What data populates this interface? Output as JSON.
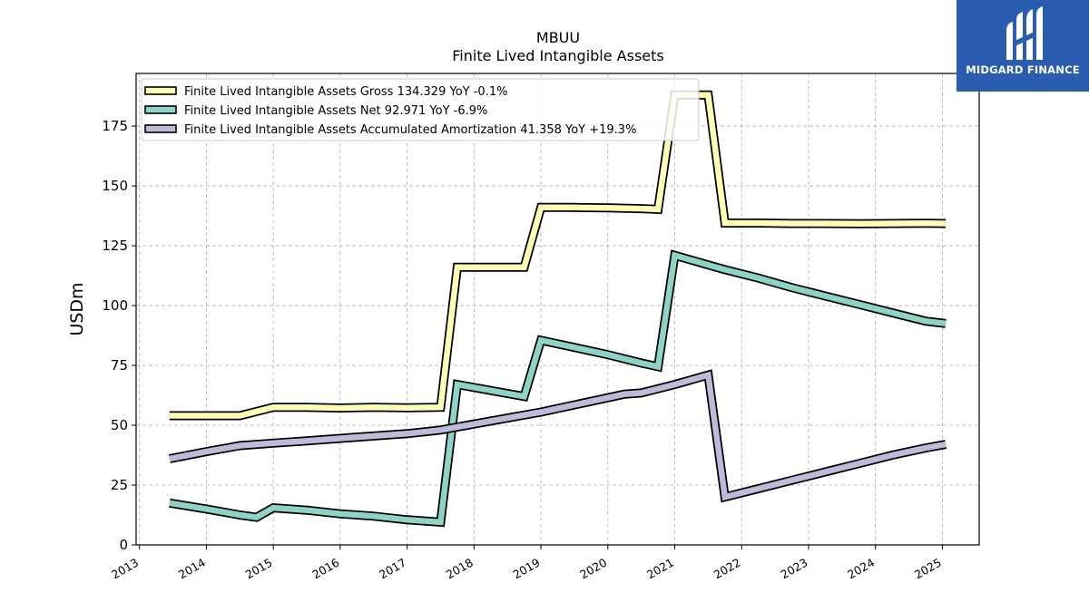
{
  "chart_data": {
    "type": "line",
    "title": "MBUU",
    "subtitle": "Finite Lived Intangible Assets",
    "ylabel": "USDm",
    "xlabel": "",
    "ylim": [
      0,
      197
    ],
    "xlim": [
      2012.95,
      2025.55
    ],
    "yticks": [
      0,
      25,
      50,
      75,
      100,
      125,
      150,
      175
    ],
    "xticks": [
      "2013",
      "2014",
      "2015",
      "2016",
      "2017",
      "2018",
      "2019",
      "2020",
      "2021",
      "2022",
      "2023",
      "2024",
      "2025"
    ],
    "grid": true,
    "legend_position": "top-left",
    "series": [
      {
        "name": "Finite Lived Intangible Assets Gross  134.329 YoY -0.1%",
        "color": "#ffffb3",
        "x": [
          2013.45,
          2014.5,
          2015.0,
          2015.5,
          2016.0,
          2016.5,
          2017.0,
          2017.5,
          2017.75,
          2018.5,
          2018.75,
          2019.0,
          2019.5,
          2020.0,
          2020.5,
          2020.75,
          2021.0,
          2021.5,
          2021.75,
          2022.25,
          2022.75,
          2023.25,
          2023.75,
          2024.25,
          2024.75,
          2025.05
        ],
        "y": [
          54,
          54,
          57.5,
          57.5,
          57.2,
          57.5,
          57.3,
          57.5,
          116,
          116,
          116,
          141,
          141,
          140.8,
          140.5,
          140.2,
          188,
          188,
          134.5,
          134.5,
          134.3,
          134.3,
          134.2,
          134.3,
          134.4,
          134.3
        ]
      },
      {
        "name": "Finite Lived Intangible Assets Net  92.971 YoY -6.9%",
        "color": "#8dd3c7",
        "x": [
          2013.45,
          2014.0,
          2014.5,
          2014.75,
          2015.0,
          2015.5,
          2016.0,
          2016.5,
          2017.0,
          2017.5,
          2017.75,
          2018.25,
          2018.75,
          2019.0,
          2019.5,
          2020.0,
          2020.5,
          2020.75,
          2021.0,
          2021.5,
          2021.75,
          2022.25,
          2022.75,
          2023.25,
          2023.75,
          2024.25,
          2024.75,
          2025.05
        ],
        "y": [
          17.5,
          15,
          12.5,
          11.5,
          15.5,
          14.5,
          13,
          12,
          10.5,
          9.5,
          67,
          64.5,
          62,
          85.5,
          82.5,
          79.5,
          76,
          74.5,
          121,
          117,
          115,
          111.5,
          107.5,
          104,
          100.5,
          97,
          93.5,
          92.5
        ]
      },
      {
        "name": "Finite Lived Intangible Assets Accumulated Amortization  41.358 YoY +19.3%",
        "color": "#bebada",
        "x": [
          2013.45,
          2014.0,
          2014.5,
          2015.0,
          2015.5,
          2016.0,
          2016.5,
          2017.0,
          2017.5,
          2018.0,
          2018.5,
          2019.0,
          2019.5,
          2020.0,
          2020.25,
          2020.5,
          2021.0,
          2021.5,
          2021.75,
          2022.25,
          2022.75,
          2023.25,
          2023.75,
          2024.25,
          2024.75,
          2025.05
        ],
        "y": [
          36,
          39,
          41.5,
          42.5,
          43.5,
          44.5,
          45.5,
          46.5,
          48,
          50.5,
          53,
          55.5,
          58.5,
          61.5,
          63,
          63.5,
          67,
          71,
          20,
          23.5,
          27,
          30.5,
          34,
          37.5,
          40.5,
          42
        ]
      }
    ]
  },
  "branding": {
    "name": "MIDGARD FINANCE",
    "logo_icon": "midgard-logo-icon",
    "color": "#2a5db0"
  }
}
